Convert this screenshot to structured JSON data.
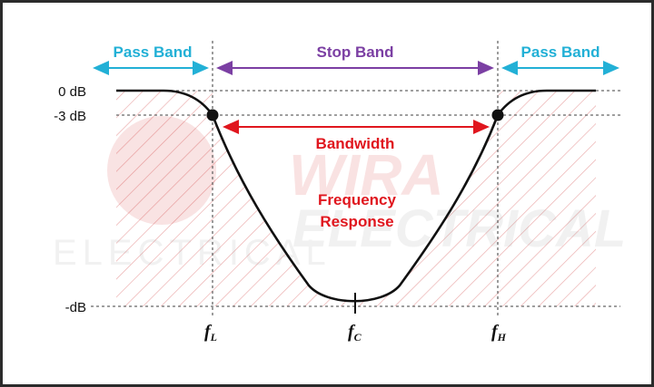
{
  "bands": {
    "left_pass": "Pass Band",
    "stop": "Stop Band",
    "right_pass": "Pass Band"
  },
  "levels": {
    "zero_db": "0 dB",
    "minus3_db": "-3 dB",
    "min_db": "-dB"
  },
  "frequencies": {
    "fl_main": "f",
    "fl_sub": "L",
    "fc_main": "f",
    "fc_sub": "C",
    "fh_main": "f",
    "fh_sub": "H"
  },
  "annotations": {
    "bandwidth": "Bandwidth",
    "freq_response_line1": "Frequency",
    "freq_response_line2": "Response"
  },
  "watermark": {
    "line1": "WIRA",
    "line2": "ELECTRICAL"
  },
  "colors": {
    "pass_band": "#22b0d6",
    "stop_band": "#7b3fa3",
    "bandwidth": "#e0161e",
    "curve": "#111111",
    "hatch": "#e8a6a6",
    "grid": "#666666"
  }
}
